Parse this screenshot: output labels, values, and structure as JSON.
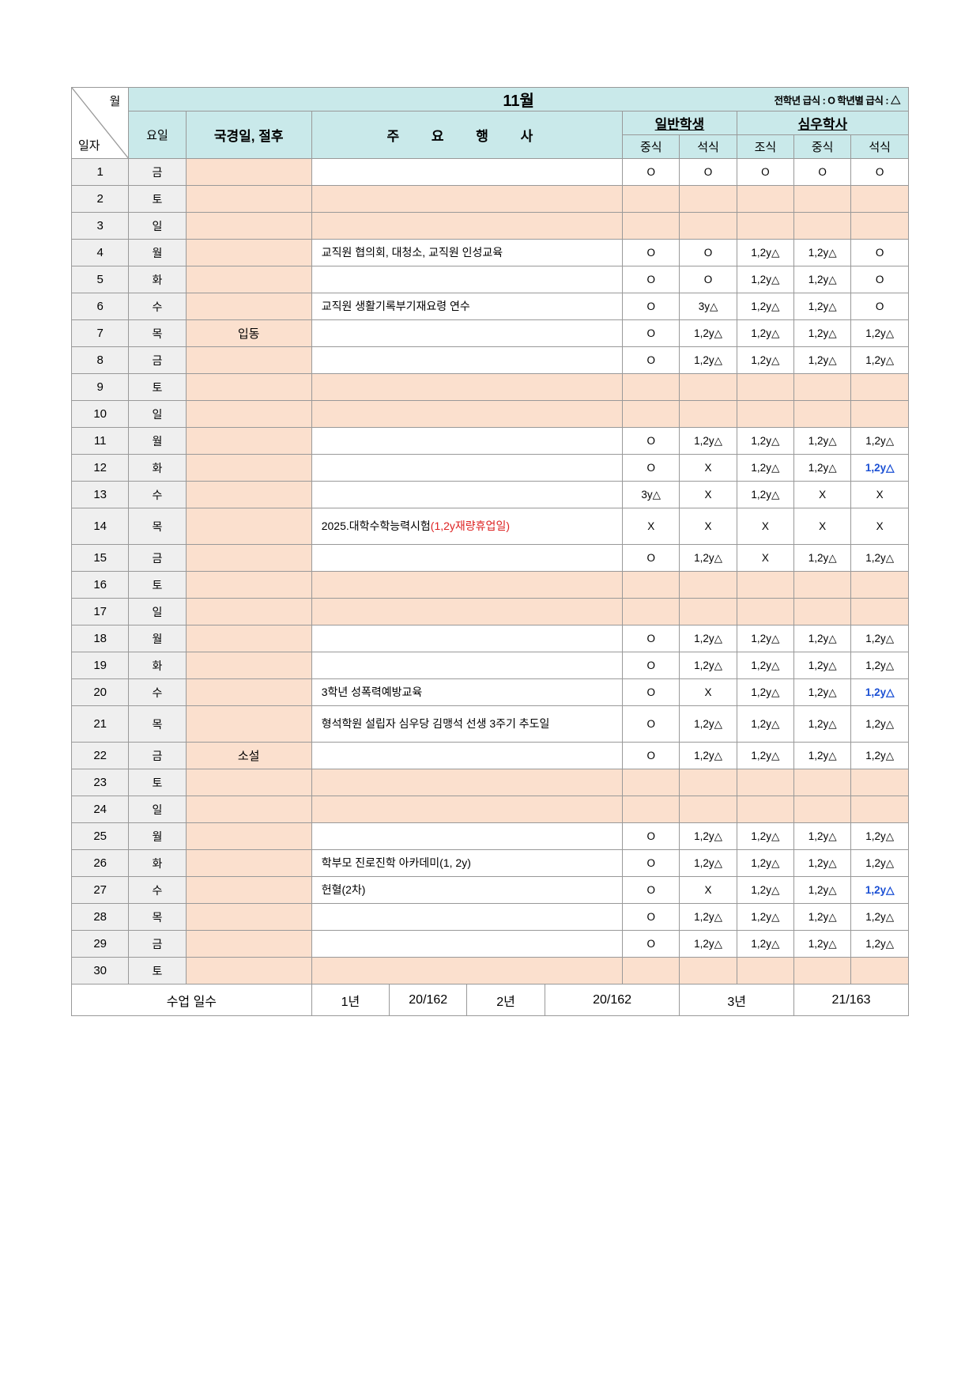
{
  "header": {
    "diag_top": "월",
    "diag_bot": "일자",
    "month_title": "11월",
    "legend_text": "전학년 급식 : O 학년별 급식 : △",
    "col_day": "요일",
    "col_holiday": "국경일, 절후",
    "col_event_spaced": "주 요 행 사",
    "grp_general": "일반학생",
    "grp_dorm": "심우학사",
    "meal_lunch": "중식",
    "meal_dinner": "석식",
    "meal_breakfast": "조식"
  },
  "rows": {
    "r1": {
      "date": "1",
      "day": "금",
      "holiday": "",
      "event": "",
      "meals": [
        "O",
        "O",
        "O",
        "O",
        "O"
      ],
      "peach": false
    },
    "r2": {
      "date": "2",
      "day": "토",
      "holiday": "",
      "event": "",
      "meals": [
        "",
        "",
        "",
        "",
        ""
      ],
      "peach": true
    },
    "r3": {
      "date": "3",
      "day": "일",
      "holiday": "",
      "event": "",
      "meals": [
        "",
        "",
        "",
        "",
        ""
      ],
      "peach": true
    },
    "r4": {
      "date": "4",
      "day": "월",
      "holiday": "",
      "event": "교직원 협의회, 대청소, 교직원 인성교육",
      "meals": [
        "O",
        "O",
        "1,2y△",
        "1,2y△",
        "O"
      ],
      "peach": false
    },
    "r5": {
      "date": "5",
      "day": "화",
      "holiday": "",
      "event": "",
      "meals": [
        "O",
        "O",
        "1,2y△",
        "1,2y△",
        "O"
      ],
      "peach": false
    },
    "r6": {
      "date": "6",
      "day": "수",
      "holiday": "",
      "event": "교직원 생활기록부기재요령 연수",
      "meals": [
        "O",
        "3y△",
        "1,2y△",
        "1,2y△",
        "O"
      ],
      "peach": false
    },
    "r7": {
      "date": "7",
      "day": "목",
      "holiday": "입동",
      "event": "",
      "meals": [
        "O",
        "1,2y△",
        "1,2y△",
        "1,2y△",
        "1,2y△"
      ],
      "peach": false
    },
    "r8": {
      "date": "8",
      "day": "금",
      "holiday": "",
      "event": "",
      "meals": [
        "O",
        "1,2y△",
        "1,2y△",
        "1,2y△",
        "1,2y△"
      ],
      "peach": false
    },
    "r9": {
      "date": "9",
      "day": "토",
      "holiday": "",
      "event": "",
      "meals": [
        "",
        "",
        "",
        "",
        ""
      ],
      "peach": true
    },
    "r10": {
      "date": "10",
      "day": "일",
      "holiday": "",
      "event": "",
      "meals": [
        "",
        "",
        "",
        "",
        ""
      ],
      "peach": true
    },
    "r11": {
      "date": "11",
      "day": "월",
      "holiday": "",
      "event": "",
      "meals": [
        "O",
        "1,2y△",
        "1,2y△",
        "1,2y△",
        "1,2y△"
      ],
      "peach": false
    },
    "r12": {
      "date": "12",
      "day": "화",
      "holiday": "",
      "event": "",
      "meals": [
        "O",
        "X",
        "1,2y△",
        "1,2y△",
        "1,2y△"
      ],
      "peach": false,
      "blue": [
        4
      ]
    },
    "r13": {
      "date": "13",
      "day": "수",
      "holiday": "",
      "event": "",
      "meals": [
        "3y△",
        "X",
        "1,2y△",
        "X",
        "X"
      ],
      "peach": false
    },
    "r14": {
      "date": "14",
      "day": "목",
      "holiday": "",
      "event_plain": "2025.대학수학능력시험",
      "event_red": "(1,2y재량휴업일)",
      "meals": [
        "X",
        "X",
        "X",
        "X",
        "X"
      ],
      "peach": false
    },
    "r15": {
      "date": "15",
      "day": "금",
      "holiday": "",
      "event": "",
      "meals": [
        "O",
        "1,2y△",
        "X",
        "1,2y△",
        "1,2y△"
      ],
      "peach": false
    },
    "r16": {
      "date": "16",
      "day": "토",
      "holiday": "",
      "event": "",
      "meals": [
        "",
        "",
        "",
        "",
        ""
      ],
      "peach": true
    },
    "r17": {
      "date": "17",
      "day": "일",
      "holiday": "",
      "event": "",
      "meals": [
        "",
        "",
        "",
        "",
        ""
      ],
      "peach": true
    },
    "r18": {
      "date": "18",
      "day": "월",
      "holiday": "",
      "event": "",
      "meals": [
        "O",
        "1,2y△",
        "1,2y△",
        "1,2y△",
        "1,2y△"
      ],
      "peach": false
    },
    "r19": {
      "date": "19",
      "day": "화",
      "holiday": "",
      "event": "",
      "meals": [
        "O",
        "1,2y△",
        "1,2y△",
        "1,2y△",
        "1,2y△"
      ],
      "peach": false
    },
    "r20": {
      "date": "20",
      "day": "수",
      "holiday": "",
      "event": "3학년 성폭력예방교육",
      "meals": [
        "O",
        "X",
        "1,2y△",
        "1,2y△",
        "1,2y△"
      ],
      "peach": false,
      "blue": [
        4
      ]
    },
    "r21": {
      "date": "21",
      "day": "목",
      "holiday": "",
      "event": "형석학원 설립자 심우당 김맹석 선생 3주기 추도일",
      "meals": [
        "O",
        "1,2y△",
        "1,2y△",
        "1,2y△",
        "1,2y△"
      ],
      "peach": false
    },
    "r22": {
      "date": "22",
      "day": "금",
      "holiday": "소설",
      "event": "",
      "meals": [
        "O",
        "1,2y△",
        "1,2y△",
        "1,2y△",
        "1,2y△"
      ],
      "peach": false
    },
    "r23": {
      "date": "23",
      "day": "토",
      "holiday": "",
      "event": "",
      "meals": [
        "",
        "",
        "",
        "",
        ""
      ],
      "peach": true
    },
    "r24": {
      "date": "24",
      "day": "일",
      "holiday": "",
      "event": "",
      "meals": [
        "",
        "",
        "",
        "",
        ""
      ],
      "peach": true
    },
    "r25": {
      "date": "25",
      "day": "월",
      "holiday": "",
      "event": "",
      "meals": [
        "O",
        "1,2y△",
        "1,2y△",
        "1,2y△",
        "1,2y△"
      ],
      "peach": false
    },
    "r26": {
      "date": "26",
      "day": "화",
      "holiday": "",
      "event": "학부모 진로진학 아카데미(1, 2y)",
      "meals": [
        "O",
        "1,2y△",
        "1,2y△",
        "1,2y△",
        "1,2y△"
      ],
      "peach": false
    },
    "r27": {
      "date": "27",
      "day": "수",
      "holiday": "",
      "event": "헌혈(2차)",
      "meals": [
        "O",
        "X",
        "1,2y△",
        "1,2y△",
        "1,2y△"
      ],
      "peach": false,
      "blue": [
        4
      ]
    },
    "r28": {
      "date": "28",
      "day": "목",
      "holiday": "",
      "event": "",
      "meals": [
        "O",
        "1,2y△",
        "1,2y△",
        "1,2y△",
        "1,2y△"
      ],
      "peach": false
    },
    "r29": {
      "date": "29",
      "day": "금",
      "holiday": "",
      "event": "",
      "meals": [
        "O",
        "1,2y△",
        "1,2y△",
        "1,2y△",
        "1,2y△"
      ],
      "peach": false
    },
    "r30": {
      "date": "30",
      "day": "토",
      "holiday": "",
      "event": "",
      "meals": [
        "",
        "",
        "",
        "",
        ""
      ],
      "peach": true
    }
  },
  "footer": {
    "label": "수업 일수",
    "y1_label": "1년",
    "y1_value": "20/162",
    "y2_label": "2년",
    "y2_value": "20/162",
    "y3_label": "3년",
    "y3_value": "21/163"
  },
  "style": {
    "bg_mint": "#c9e9ea",
    "bg_peach": "#fbe0ce",
    "bg_gray": "#efefef",
    "color_red": "#d22",
    "color_blue": "#1a4fd4"
  }
}
